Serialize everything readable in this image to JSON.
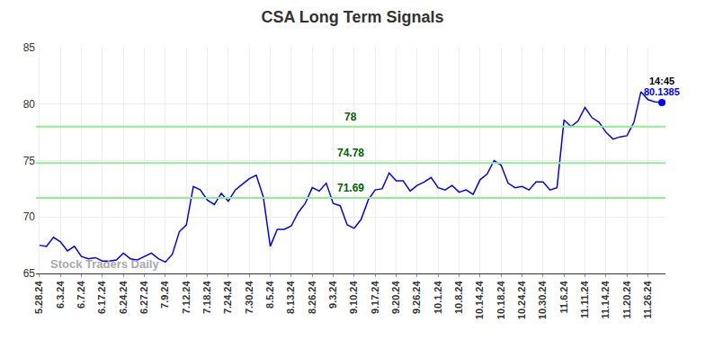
{
  "chart_data": {
    "type": "line",
    "title": "CSA Long Term Signals",
    "categories": [
      "5.28.24",
      null,
      null,
      "6.3.24",
      null,
      null,
      "6.7.24",
      null,
      null,
      "6.17.24",
      null,
      null,
      "6.24.24",
      null,
      null,
      "6.27.24",
      null,
      null,
      "7.9.24",
      null,
      null,
      "7.12.24",
      null,
      null,
      "7.18.24",
      null,
      null,
      "7.24.24",
      null,
      null,
      "7.30.24",
      null,
      null,
      "8.5.24",
      null,
      null,
      "8.13.24",
      null,
      null,
      "8.26.24",
      null,
      null,
      "9.3.24",
      null,
      null,
      "9.10.24",
      null,
      null,
      "9.17.24",
      null,
      null,
      "9.20.24",
      null,
      null,
      "9.26.24",
      null,
      null,
      "10.1.24",
      null,
      null,
      "10.8.24",
      null,
      null,
      "10.14.24",
      null,
      null,
      "10.18.24",
      null,
      null,
      "10.24.24",
      null,
      null,
      "10.30.24",
      null,
      null,
      "11.6.24",
      null,
      null,
      "11.11.24",
      null,
      null,
      "11.14.24",
      null,
      null,
      "11.20.24",
      null,
      null,
      "11.26.24",
      null,
      null
    ],
    "values": [
      67.5,
      67.4,
      68.2,
      67.8,
      67.0,
      67.4,
      66.5,
      66.3,
      66.4,
      66.1,
      66.1,
      66.2,
      66.8,
      66.3,
      66.2,
      66.5,
      66.8,
      66.3,
      66.0,
      66.7,
      68.7,
      69.3,
      72.7,
      72.4,
      71.5,
      71.1,
      72.1,
      71.4,
      72.4,
      72.9,
      73.4,
      73.7,
      71.8,
      67.4,
      68.9,
      68.9,
      69.2,
      70.4,
      71.2,
      72.6,
      72.3,
      73.0,
      71.2,
      71.0,
      69.3,
      69.0,
      69.8,
      71.5,
      72.4,
      72.5,
      73.9,
      73.2,
      73.2,
      72.3,
      72.8,
      73.1,
      73.5,
      72.6,
      72.4,
      72.8,
      72.2,
      72.4,
      72.0,
      73.3,
      73.8,
      75.0,
      74.6,
      73.0,
      72.6,
      72.7,
      72.4,
      73.1,
      73.1,
      72.4,
      72.6,
      78.6,
      78.0,
      78.5,
      79.7,
      78.8,
      78.4,
      77.5,
      76.9,
      77.1,
      77.2,
      78.4,
      81.1,
      80.4,
      80.2,
      80.1385
    ],
    "color": "#0000ff",
    "ylim": [
      65,
      85
    ],
    "yticks": [
      65,
      70,
      75,
      80,
      85
    ],
    "grid": true,
    "signal_lines": [
      78,
      74.78,
      71.69
    ],
    "last_label": "14:45",
    "watermark": "Stock Traders Daily"
  }
}
